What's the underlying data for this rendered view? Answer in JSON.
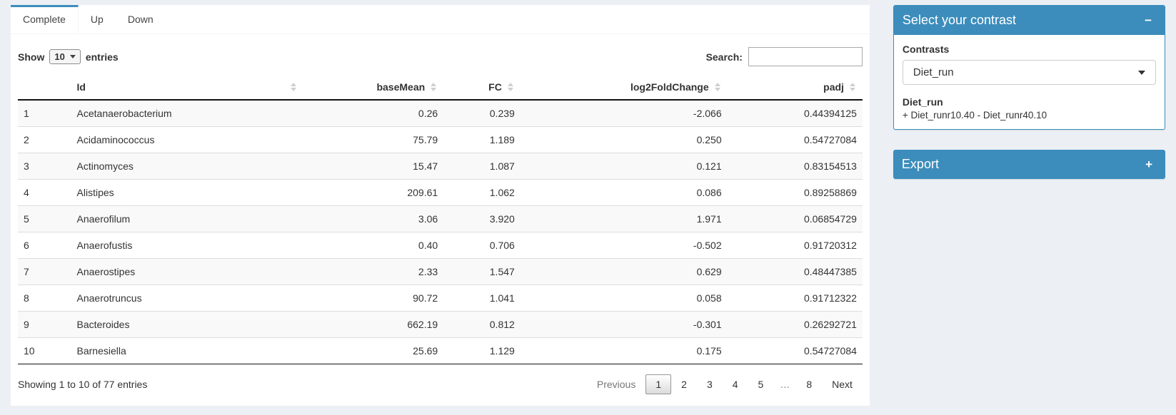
{
  "colors": {
    "primary": "#3c8dbc",
    "page_bg": "#ecf0f5"
  },
  "tabs": {
    "complete": "Complete",
    "up": "Up",
    "down": "Down"
  },
  "length_control": {
    "show_label": "Show",
    "selected": "10",
    "entries_label": "entries"
  },
  "search": {
    "label": "Search:",
    "value": "",
    "placeholder": ""
  },
  "table": {
    "headers": {
      "index": "",
      "id": "Id",
      "base_mean": "baseMean",
      "fc": "FC",
      "log2fc": "log2FoldChange",
      "padj": "padj"
    },
    "rows": [
      {
        "num": "1",
        "id": "Acetanaerobacterium",
        "base_mean": "0.26",
        "fc": "0.239",
        "log2fc": "-2.066",
        "padj": "0.44394125"
      },
      {
        "num": "2",
        "id": "Acidaminococcus",
        "base_mean": "75.79",
        "fc": "1.189",
        "log2fc": "0.250",
        "padj": "0.54727084"
      },
      {
        "num": "3",
        "id": "Actinomyces",
        "base_mean": "15.47",
        "fc": "1.087",
        "log2fc": "0.121",
        "padj": "0.83154513"
      },
      {
        "num": "4",
        "id": "Alistipes",
        "base_mean": "209.61",
        "fc": "1.062",
        "log2fc": "0.086",
        "padj": "0.89258869"
      },
      {
        "num": "5",
        "id": "Anaerofilum",
        "base_mean": "3.06",
        "fc": "3.920",
        "log2fc": "1.971",
        "padj": "0.06854729"
      },
      {
        "num": "6",
        "id": "Anaerofustis",
        "base_mean": "0.40",
        "fc": "0.706",
        "log2fc": "-0.502",
        "padj": "0.91720312"
      },
      {
        "num": "7",
        "id": "Anaerostipes",
        "base_mean": "2.33",
        "fc": "1.547",
        "log2fc": "0.629",
        "padj": "0.48447385"
      },
      {
        "num": "8",
        "id": "Anaerotruncus",
        "base_mean": "90.72",
        "fc": "1.041",
        "log2fc": "0.058",
        "padj": "0.91712322"
      },
      {
        "num": "9",
        "id": "Bacteroides",
        "base_mean": "662.19",
        "fc": "0.812",
        "log2fc": "-0.301",
        "padj": "0.26292721"
      },
      {
        "num": "10",
        "id": "Barnesiella",
        "base_mean": "25.69",
        "fc": "1.129",
        "log2fc": "0.175",
        "padj": "0.54727084"
      }
    ]
  },
  "footer": {
    "info": "Showing 1 to 10 of 77 entries",
    "previous_label": "Previous",
    "pages": [
      "1",
      "2",
      "3",
      "4",
      "5",
      "…",
      "8"
    ],
    "current_page": "1",
    "next_label": "Next"
  },
  "contrast_box": {
    "title": "Select your contrast",
    "collapse_icon": "−",
    "contrasts_label": "Contrasts",
    "selected_contrast": "Diet_run",
    "contrast_name": "Diet_run",
    "contrast_formula": "+ Diet_runr10.40 - Diet_runr40.10"
  },
  "export_box": {
    "title": "Export",
    "expand_icon": "+"
  }
}
